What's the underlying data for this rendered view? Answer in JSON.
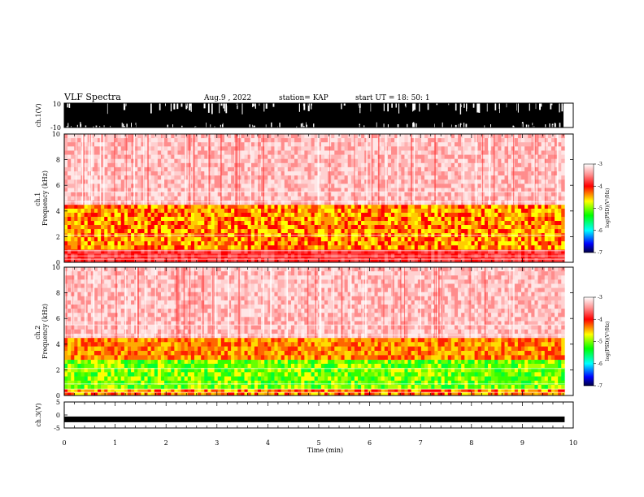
{
  "header": {
    "title": "VLF Spectra",
    "date": "Aug.9  , 2022",
    "station": "station= KAP",
    "start_ut": "start  UT  =   18: 50: 1"
  },
  "colors": {
    "frame": "#000000",
    "spec_red": "#ff0000",
    "spec_yellow": "#ffff00",
    "spec_green": "#00ff00",
    "spec_blue": "#0000ff"
  },
  "chart_data": [
    {
      "type": "line",
      "panel": "ch1_waveform",
      "ylabel": "ch.1(V)",
      "ylim": [
        -10,
        10
      ],
      "y_ticks": [
        "10",
        "-10"
      ],
      "xlim": [
        0,
        10
      ],
      "note": "dense waveform, signal saturating between about -6 and 10 V across the whole record"
    },
    {
      "type": "heatmap",
      "panel": "ch1_spectrogram",
      "ylabel": "ch.1\nFrequency  (kHz)",
      "ylim": [
        0,
        10
      ],
      "y_ticks": [
        "0",
        "2",
        "4",
        "6",
        "8",
        "10"
      ],
      "xlim": [
        0,
        10
      ],
      "data_end_min": 9.83,
      "bands_khz": [
        {
          "from": 0.0,
          "to": 1.0,
          "level": "red"
        },
        {
          "from": 1.0,
          "to": 4.5,
          "level": "red-yellow"
        },
        {
          "from": 4.5,
          "to": 10.0,
          "level": "light-red"
        }
      ],
      "colorbar": {
        "label": "log(PSD)(V²/Hz)",
        "ticks": [
          "-3",
          "-4",
          "-5",
          "-6",
          "-7"
        ],
        "range": [
          -7,
          -3
        ]
      }
    },
    {
      "type": "heatmap",
      "panel": "ch2_spectrogram",
      "ylabel": "ch.2\nFrequency  (kHz)",
      "ylim": [
        0,
        10
      ],
      "y_ticks": [
        "0",
        "2",
        "4",
        "6",
        "8",
        "10"
      ],
      "xlim": [
        0,
        10
      ],
      "data_end_min": 9.83,
      "bands_khz": [
        {
          "from": 0.0,
          "to": 0.5,
          "level": "red-yellow"
        },
        {
          "from": 0.5,
          "to": 2.8,
          "level": "green"
        },
        {
          "from": 2.8,
          "to": 4.5,
          "level": "yellow-red"
        },
        {
          "from": 4.5,
          "to": 10.0,
          "level": "light-red"
        }
      ],
      "colorbar": {
        "label": "log(PSD)(V²/Hz)",
        "ticks": [
          "-3",
          "-4",
          "-5",
          "-6",
          "-7"
        ],
        "range": [
          -7,
          -3
        ]
      }
    },
    {
      "type": "line",
      "panel": "ch3_waveform",
      "ylabel": "ch.3(V)",
      "ylim": [
        -5,
        5
      ],
      "y_ticks": [
        "5",
        "0",
        "-5"
      ],
      "xlim": [
        0,
        10
      ],
      "x_ticks": [
        "0",
        "1",
        "2",
        "3",
        "4",
        "5",
        "6",
        "7",
        "8",
        "9",
        "10"
      ],
      "xlabel": "Time  (min)",
      "level_v": -1.7
    }
  ]
}
